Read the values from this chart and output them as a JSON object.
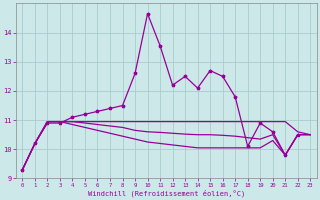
{
  "xlabel": "Windchill (Refroidissement éolien,°C)",
  "bg_color": "#cce8e8",
  "line_color": "#990099",
  "grid_color": "#aacccc",
  "xlim": [
    -0.5,
    23.5
  ],
  "ylim": [
    9.0,
    15.0
  ],
  "xticks": [
    0,
    1,
    2,
    3,
    4,
    5,
    6,
    7,
    8,
    9,
    10,
    11,
    12,
    13,
    14,
    15,
    16,
    17,
    18,
    19,
    20,
    21,
    22,
    23
  ],
  "yticks": [
    9,
    10,
    11,
    12,
    13,
    14
  ],
  "series1_x": [
    0,
    1,
    2,
    3,
    4,
    5,
    6,
    7,
    8,
    9,
    10,
    11,
    12,
    13,
    14,
    15,
    16,
    17,
    18,
    19,
    20,
    21,
    22
  ],
  "series1_y": [
    9.3,
    10.2,
    10.9,
    10.9,
    11.1,
    11.2,
    11.3,
    11.4,
    11.5,
    12.6,
    14.65,
    13.55,
    12.2,
    12.5,
    12.1,
    12.7,
    12.5,
    11.8,
    10.1,
    10.9,
    10.6,
    9.8,
    10.5
  ],
  "series2_x": [
    0,
    1,
    2,
    3,
    4,
    5,
    6,
    7,
    8,
    9,
    10,
    11,
    12,
    13,
    14,
    15,
    16,
    17,
    18,
    19,
    20,
    21,
    22,
    23
  ],
  "series2_y": [
    9.3,
    10.2,
    10.95,
    10.95,
    10.95,
    10.95,
    10.95,
    10.95,
    10.95,
    10.95,
    10.95,
    10.95,
    10.95,
    10.95,
    10.95,
    10.95,
    10.95,
    10.95,
    10.95,
    10.95,
    10.95,
    10.95,
    10.6,
    10.5
  ],
  "series3_x": [
    0,
    1,
    2,
    3,
    4,
    5,
    6,
    7,
    8,
    9,
    10,
    11,
    12,
    13,
    14,
    15,
    16,
    17,
    18,
    19,
    20,
    21,
    22,
    23
  ],
  "series3_y": [
    9.3,
    10.2,
    10.95,
    10.95,
    10.85,
    10.75,
    10.65,
    10.55,
    10.45,
    10.35,
    10.25,
    10.2,
    10.15,
    10.1,
    10.05,
    10.05,
    10.05,
    10.05,
    10.05,
    10.05,
    10.3,
    9.8,
    10.5,
    10.5
  ],
  "series4_x": [
    0,
    1,
    2,
    3,
    4,
    5,
    6,
    7,
    8,
    9,
    10,
    11,
    12,
    13,
    14,
    15,
    16,
    17,
    18,
    19,
    20,
    21,
    22,
    23
  ],
  "series4_y": [
    9.3,
    10.2,
    10.95,
    10.95,
    10.95,
    10.9,
    10.85,
    10.8,
    10.75,
    10.65,
    10.6,
    10.58,
    10.55,
    10.52,
    10.5,
    10.5,
    10.48,
    10.45,
    10.4,
    10.35,
    10.5,
    9.8,
    10.5,
    10.5
  ]
}
